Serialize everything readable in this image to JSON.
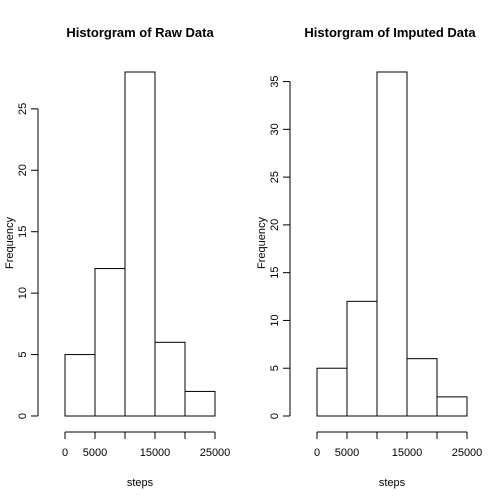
{
  "chart_data": [
    {
      "type": "bar",
      "title": "Historgram of Raw Data",
      "xlabel": "steps",
      "ylabel": "Frequency",
      "bins": [
        [
          0,
          5000
        ],
        [
          5000,
          10000
        ],
        [
          10000,
          15000
        ],
        [
          15000,
          20000
        ],
        [
          20000,
          25000
        ]
      ],
      "values": [
        5,
        12,
        28,
        6,
        2
      ],
      "xlim": [
        0,
        25000
      ],
      "ylim": [
        0,
        28
      ],
      "x_ticks": [
        0,
        5000,
        10000,
        15000,
        20000,
        25000
      ],
      "x_tick_labels": [
        "0",
        "5000",
        "",
        "15000",
        "",
        "25000"
      ],
      "y_ticks": [
        0,
        5,
        10,
        15,
        20,
        25
      ],
      "y_tick_labels": [
        "0",
        "5",
        "10",
        "15",
        "20",
        "25"
      ],
      "grid": false,
      "legend": "none"
    },
    {
      "type": "bar",
      "title": "Historgram of Imputed Data",
      "xlabel": "steps",
      "ylabel": "Frequency",
      "bins": [
        [
          0,
          5000
        ],
        [
          5000,
          10000
        ],
        [
          10000,
          15000
        ],
        [
          15000,
          20000
        ],
        [
          20000,
          25000
        ]
      ],
      "values": [
        5,
        12,
        36,
        6,
        2
      ],
      "xlim": [
        0,
        25000
      ],
      "ylim": [
        0,
        36
      ],
      "x_ticks": [
        0,
        5000,
        10000,
        15000,
        20000,
        25000
      ],
      "x_tick_labels": [
        "0",
        "5000",
        "",
        "15000",
        "",
        "25000"
      ],
      "y_ticks": [
        0,
        5,
        10,
        15,
        20,
        25,
        30,
        35
      ],
      "y_tick_labels": [
        "0",
        "5",
        "10",
        "15",
        "20",
        "25",
        "30",
        "35"
      ],
      "grid": false,
      "legend": "none"
    }
  ]
}
